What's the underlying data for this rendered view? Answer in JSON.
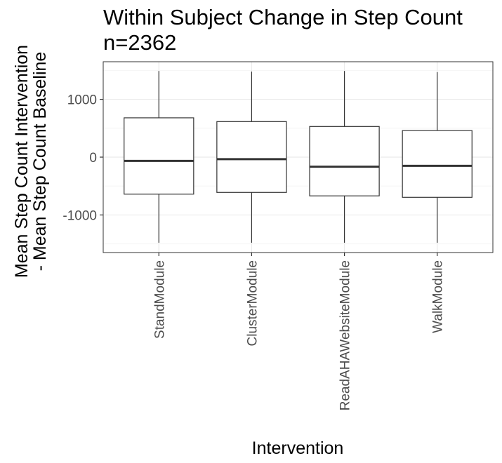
{
  "chart_data": {
    "type": "boxplot",
    "title": "Within Subject Change in Step Count",
    "subtitle": "n=2362",
    "xlabel": "Intervention",
    "ylabel_line1": "Mean Step Count Intervention",
    "ylabel_line2": "- Mean Step Count Baseline",
    "ylim": [
      -1650,
      1650
    ],
    "yticks": [
      1000,
      0,
      -1000
    ],
    "ytick_labels": [
      "1000",
      "0",
      "-1000"
    ],
    "grid": true,
    "categories": [
      "StandModule",
      "ClusterModule",
      "ReadAHAWebsiteModule",
      "WalkModule"
    ],
    "boxes": [
      {
        "category": "StandModule",
        "whisker_low": -1480,
        "q1": -640,
        "median": -65,
        "q3": 680,
        "whisker_high": 1490
      },
      {
        "category": "ClusterModule",
        "whisker_low": -1480,
        "q1": -610,
        "median": -35,
        "q3": 615,
        "whisker_high": 1480
      },
      {
        "category": "ReadAHAWebsiteModule",
        "whisker_low": -1480,
        "q1": -670,
        "median": -165,
        "q3": 530,
        "whisker_high": 1490
      },
      {
        "category": "WalkModule",
        "whisker_low": -1480,
        "q1": -695,
        "median": -150,
        "q3": 460,
        "whisker_high": 1470
      }
    ],
    "colors": {
      "box_fill": "#ffffff",
      "box_stroke": "#333333",
      "median": "#333333",
      "grid_major": "#ebebeb",
      "grid_minor": "#f5f5f5",
      "panel_border": "#333333",
      "tick_text": "#4d4d4d"
    }
  }
}
